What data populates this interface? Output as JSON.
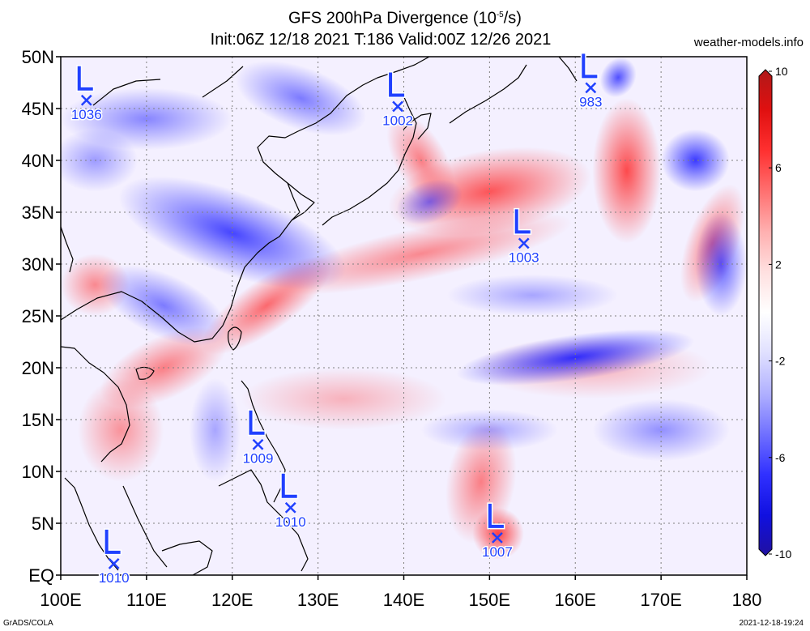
{
  "title": {
    "line1_prefix": "GFS 200hPa Divergence (10",
    "line1_exp": "-5",
    "line1_suffix": "/s)",
    "line2": "Init:06Z 12/18 2021 T:186 Valid:00Z 12/26 2021"
  },
  "site": "weather-models.info",
  "footer": {
    "left": "GrADS/COLA",
    "right": "2021-12-18-19:24"
  },
  "map": {
    "lon_range": [
      100,
      180
    ],
    "lat_range": [
      0,
      50
    ],
    "lon_labels": [
      "100E",
      "110E",
      "120E",
      "130E",
      "140E",
      "150E",
      "160E",
      "170E",
      "180"
    ],
    "lat_labels": [
      "EQ",
      "5N",
      "10N",
      "15N",
      "20N",
      "25N",
      "30N",
      "35N",
      "40N",
      "45N",
      "50N"
    ],
    "grid": "dotted",
    "lows": [
      {
        "lon": 103.0,
        "lat": 45.8,
        "pressure": "1036"
      },
      {
        "lon": 139.3,
        "lat": 45.2,
        "pressure": "1002"
      },
      {
        "lon": 161.8,
        "lat": 47.0,
        "pressure": "983"
      },
      {
        "lon": 154.0,
        "lat": 32.0,
        "pressure": "1003"
      },
      {
        "lon": 123.0,
        "lat": 12.6,
        "pressure": "1009"
      },
      {
        "lon": 126.8,
        "lat": 6.5,
        "pressure": "1010"
      },
      {
        "lon": 150.9,
        "lat": 3.6,
        "pressure": "1007"
      },
      {
        "lon": 106.2,
        "lat": 1.1,
        "pressure": "1010"
      }
    ],
    "low_color": "#2040ff"
  },
  "colorbar": {
    "labels": [
      "10",
      "6",
      "2",
      "-2",
      "-6",
      "-10"
    ],
    "colors_top_to_bottom": [
      "#b01818",
      "#e01010",
      "#ff3030",
      "#ff7070",
      "#ffb0b0",
      "#ffe0e0",
      "#ffffff",
      "#e0e0ff",
      "#b0b0ff",
      "#7070ff",
      "#3030ff",
      "#1010e0",
      "#2010a0"
    ]
  },
  "fields": {
    "positive": [
      {
        "lon": 150,
        "lat": 37,
        "rx": 12,
        "ry": 4,
        "rot": -10,
        "strength": 0.75
      },
      {
        "lon": 166,
        "lat": 39,
        "rx": 4,
        "ry": 7,
        "rot": 0,
        "strength": 0.8
      },
      {
        "lon": 142,
        "lat": 31,
        "rx": 18,
        "ry": 2.5,
        "rot": -12,
        "strength": 0.5
      },
      {
        "lon": 124,
        "lat": 26,
        "rx": 9,
        "ry": 2.5,
        "rot": -35,
        "strength": 0.65
      },
      {
        "lon": 112,
        "lat": 20,
        "rx": 8,
        "ry": 3,
        "rot": -25,
        "strength": 0.55
      },
      {
        "lon": 107,
        "lat": 14,
        "rx": 5,
        "ry": 5,
        "rot": 0,
        "strength": 0.45
      },
      {
        "lon": 149,
        "lat": 9,
        "rx": 4,
        "ry": 6,
        "rot": 10,
        "strength": 0.55
      },
      {
        "lon": 151,
        "lat": 4,
        "rx": 3,
        "ry": 2.5,
        "rot": 0,
        "strength": 0.85
      },
      {
        "lon": 176,
        "lat": 32,
        "rx": 3,
        "ry": 6,
        "rot": 20,
        "strength": 0.6
      },
      {
        "lon": 104,
        "lat": 28,
        "rx": 4,
        "ry": 3,
        "rot": 0,
        "strength": 0.5
      },
      {
        "lon": 133,
        "lat": 17,
        "rx": 12,
        "ry": 3,
        "rot": 0,
        "strength": 0.3
      },
      {
        "lon": 162,
        "lat": 20,
        "rx": 14,
        "ry": 3,
        "rot": 0,
        "strength": 0.3
      },
      {
        "lon": 142,
        "lat": 40,
        "rx": 3,
        "ry": 5,
        "rot": -30,
        "strength": 0.55
      }
    ],
    "negative": [
      {
        "lon": 120,
        "lat": 33,
        "rx": 14,
        "ry": 4,
        "rot": 20,
        "strength": 0.8
      },
      {
        "lon": 112,
        "lat": 26,
        "rx": 8,
        "ry": 3,
        "rot": 25,
        "strength": 0.55
      },
      {
        "lon": 160,
        "lat": 21,
        "rx": 14,
        "ry": 2.2,
        "rot": -8,
        "strength": 0.9
      },
      {
        "lon": 174,
        "lat": 40,
        "rx": 4,
        "ry": 3,
        "rot": 0,
        "strength": 0.85
      },
      {
        "lon": 177,
        "lat": 30,
        "rx": 3,
        "ry": 5,
        "rot": 0,
        "strength": 0.7
      },
      {
        "lon": 165,
        "lat": 48,
        "rx": 2,
        "ry": 2,
        "rot": 30,
        "strength": 0.75
      },
      {
        "lon": 110,
        "lat": 44,
        "rx": 10,
        "ry": 3,
        "rot": 0,
        "strength": 0.5
      },
      {
        "lon": 143,
        "lat": 36,
        "rx": 4,
        "ry": 2,
        "rot": -20,
        "strength": 0.55
      },
      {
        "lon": 128,
        "lat": 46,
        "rx": 8,
        "ry": 3,
        "rot": 20,
        "strength": 0.55
      },
      {
        "lon": 150,
        "lat": 14,
        "rx": 8,
        "ry": 2,
        "rot": 0,
        "strength": 0.35
      },
      {
        "lon": 170,
        "lat": 14,
        "rx": 8,
        "ry": 3,
        "rot": 0,
        "strength": 0.45
      },
      {
        "lon": 104,
        "lat": 40,
        "rx": 5,
        "ry": 3,
        "rot": 0,
        "strength": 0.4
      },
      {
        "lon": 118,
        "lat": 14,
        "rx": 3,
        "ry": 5,
        "rot": 0,
        "strength": 0.35
      },
      {
        "lon": 155,
        "lat": 27,
        "rx": 10,
        "ry": 2,
        "rot": 0,
        "strength": 0.35
      }
    ]
  }
}
